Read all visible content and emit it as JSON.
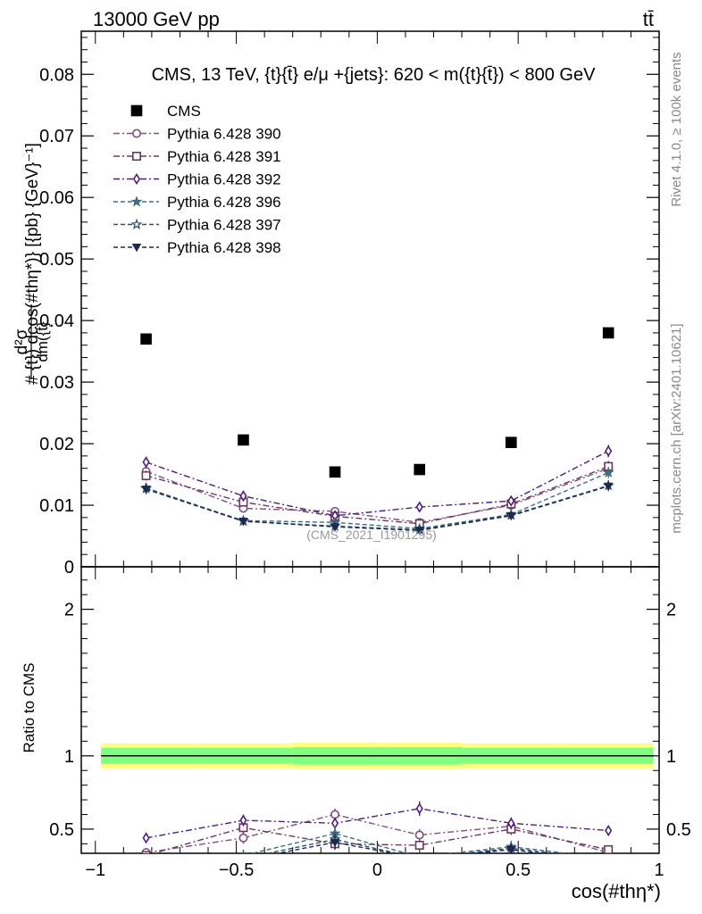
{
  "header": {
    "left": "13000 GeV pp",
    "right": "tt̄"
  },
  "side_labels": {
    "rivet": "Rivet 4.1.0, ≥ 100k events",
    "mcplots": "mcplots.cern.ch [arXiv:2401.10621]"
  },
  "colors": {
    "cms": "#000000",
    "s390": "#7f4f7f",
    "s391": "#6b3a5a",
    "s392": "#4b1f7a",
    "s396": "#3f6e7f",
    "s397": "#2e4f6e",
    "s398": "#1c2a4f",
    "band_outer": "#ffff80",
    "band_inner": "#80ff80"
  },
  "chart_data": [
    {
      "type": "scatter",
      "panel": "main",
      "title": "CMS, 13 TeV, {t}{t̄} e/μ +{jets}: 620 < m({t}{t̄}) < 800 GeV",
      "ylabel_fraction_num": "d²σ",
      "ylabel_fraction_den": "dm({t}",
      "ylabel_rest": "#   {t}) dcos(#thη*)} [{pb} {GeV}⁻¹]",
      "watermark": "(CMS_2021_I1901295)",
      "xlim": [
        -1.05,
        1.0
      ],
      "ylim": [
        0,
        0.087
      ],
      "yticks": [
        0,
        0.01,
        0.02,
        0.03,
        0.04,
        0.05,
        0.06,
        0.07,
        0.08
      ],
      "ytick_labels": [
        "0",
        "0.01",
        "0.02",
        "0.03",
        "0.04",
        "0.05",
        "0.06",
        "0.07",
        "0.08"
      ],
      "x": [
        -0.82,
        -0.475,
        -0.15,
        0.15,
        0.475,
        0.82
      ],
      "series": [
        {
          "key": "cms",
          "name": "CMS",
          "marker": "filled-square",
          "dash": "none",
          "values": [
            0.037,
            0.0206,
            0.0154,
            0.0158,
            0.0202,
            0.038
          ]
        },
        {
          "key": "s390",
          "name": "Pythia 6.428 390",
          "marker": "open-circle",
          "dash": "dashdot",
          "values": [
            0.0155,
            0.0095,
            0.009,
            0.0072,
            0.01,
            0.016
          ],
          "errors": [
            0.0008,
            0.0007,
            0.0006,
            0.0006,
            0.0007,
            0.0009
          ]
        },
        {
          "key": "s391",
          "name": "Pythia 6.428 391",
          "marker": "open-square",
          "dash": "dashdot",
          "values": [
            0.0148,
            0.0105,
            0.0082,
            0.007,
            0.0102,
            0.0163
          ],
          "errors": [
            0.0008,
            0.0007,
            0.0006,
            0.0006,
            0.0007,
            0.0009
          ]
        },
        {
          "key": "s392",
          "name": "Pythia 6.428 392",
          "marker": "open-diamond",
          "dash": "dashdot",
          "values": [
            0.017,
            0.0115,
            0.0083,
            0.0097,
            0.0107,
            0.0188
          ],
          "errors": [
            0.0009,
            0.0007,
            0.0006,
            0.0007,
            0.0007,
            0.001
          ]
        },
        {
          "key": "s396",
          "name": "Pythia 6.428 396",
          "marker": "filled-star",
          "dash": "dashed",
          "values": [
            0.0127,
            0.0075,
            0.0072,
            0.0062,
            0.0085,
            0.0153
          ],
          "errors": [
            0.0008,
            0.0006,
            0.0006,
            0.0005,
            0.0006,
            0.0009
          ]
        },
        {
          "key": "s397",
          "name": "Pythia 6.428 397",
          "marker": "open-star",
          "dash": "dashed",
          "values": [
            0.0128,
            0.0074,
            0.0066,
            0.006,
            0.0084,
            0.0132
          ],
          "errors": [
            0.0008,
            0.0006,
            0.0006,
            0.0005,
            0.0006,
            0.0008
          ]
        },
        {
          "key": "s398",
          "name": "Pythia 6.428 398",
          "marker": "filled-triangle-down",
          "dash": "dashed",
          "values": [
            0.0126,
            0.0074,
            0.0065,
            0.0059,
            0.0083,
            0.0131
          ],
          "errors": [
            0.0008,
            0.0006,
            0.0006,
            0.0005,
            0.0006,
            0.0008
          ]
        }
      ]
    },
    {
      "type": "scatter",
      "panel": "ratio",
      "ylabel": "Ratio to CMS",
      "xlabel": "cos(#thη*)",
      "xlim": [
        -1.05,
        1.0
      ],
      "ylim": [
        0.335,
        2.29
      ],
      "xticks": [
        -1,
        -0.5,
        0,
        0.5,
        1
      ],
      "xtick_labels": [
        "−1",
        "−0.5",
        "0",
        "0.5",
        "1"
      ],
      "yticks": [
        0.5,
        1,
        2
      ],
      "ytick_labels": [
        "0.5",
        "1",
        "2"
      ],
      "band_edges": [
        -0.98,
        -0.65,
        -0.3,
        0,
        0.3,
        0.65,
        0.98
      ],
      "band_outer_halfwidth": [
        0.085,
        0.085,
        0.09,
        0.09,
        0.085,
        0.085
      ],
      "band_inner_halfwidth": [
        0.055,
        0.055,
        0.06,
        0.06,
        0.055,
        0.055
      ],
      "x": [
        -0.82,
        -0.475,
        -0.15,
        0.15,
        0.475,
        0.82
      ],
      "series": [
        {
          "key": "s390",
          "values": [
            0.34,
            0.44,
            0.6,
            0.46,
            0.52,
            0.34
          ],
          "errors": [
            0.03,
            0.04,
            0.04,
            0.04,
            0.04,
            0.03
          ]
        },
        {
          "key": "s391",
          "values": [
            0.32,
            0.51,
            0.4,
            0.39,
            0.5,
            0.36
          ],
          "errors": [
            0.03,
            0.04,
            0.04,
            0.04,
            0.04,
            0.03
          ]
        },
        {
          "key": "s392",
          "values": [
            0.44,
            0.56,
            0.54,
            0.64,
            0.54,
            0.49
          ],
          "errors": [
            0.03,
            0.04,
            0.04,
            0.05,
            0.04,
            0.03
          ]
        },
        {
          "key": "s396",
          "values": [
            0.3,
            0.32,
            0.47,
            0.31,
            0.38,
            0.3
          ],
          "errors": [
            0.03,
            0.04,
            0.05,
            0.04,
            0.04,
            0.03
          ]
        },
        {
          "key": "s397",
          "values": [
            0.29,
            0.3,
            0.43,
            0.3,
            0.37,
            0.29
          ],
          "errors": [
            0.03,
            0.04,
            0.05,
            0.04,
            0.04,
            0.03
          ]
        },
        {
          "key": "s398",
          "values": [
            0.28,
            0.29,
            0.41,
            0.3,
            0.36,
            0.28
          ],
          "errors": [
            0.03,
            0.04,
            0.05,
            0.04,
            0.04,
            0.03
          ]
        }
      ]
    }
  ]
}
